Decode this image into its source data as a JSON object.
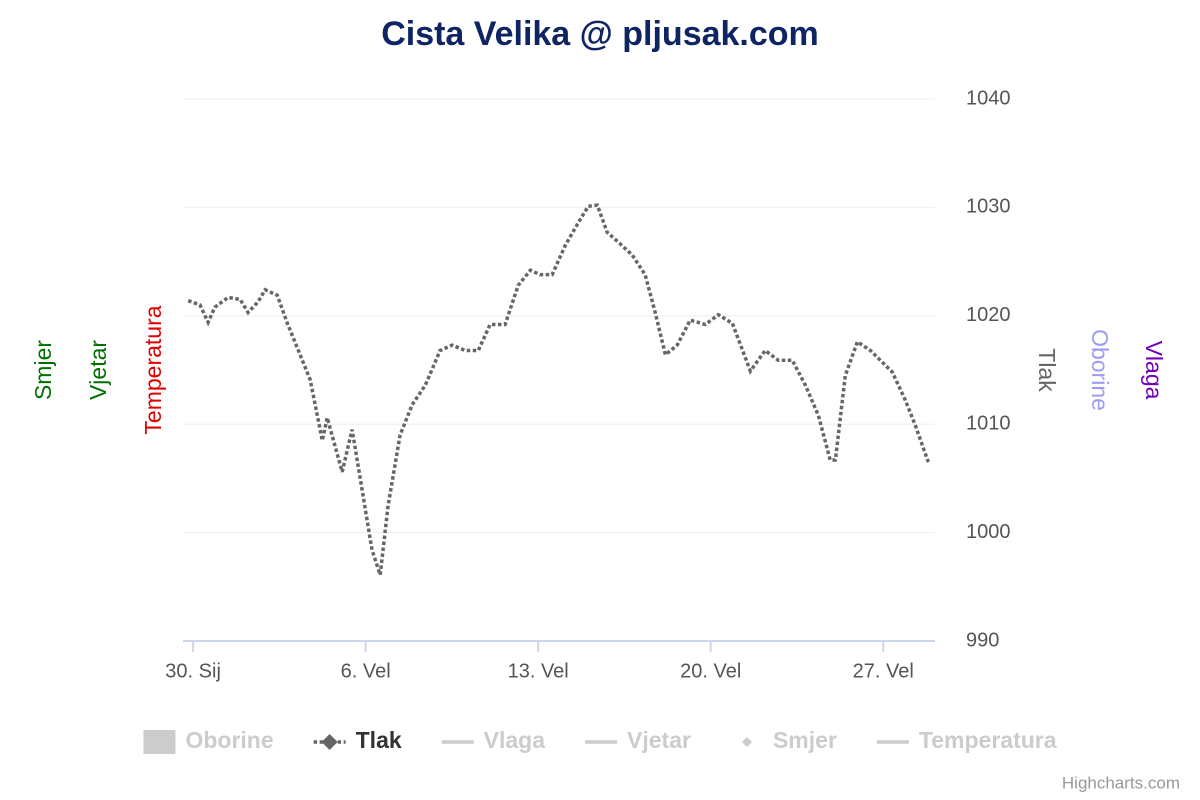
{
  "chart_data": {
    "type": "line",
    "title": "Cista Velika @ pljusak.com",
    "credits": "Highcharts.com",
    "xlim": [
      -0.41,
      30.1
    ],
    "xticks": [
      {
        "value": 0,
        "label": "30. Sij"
      },
      {
        "value": 7,
        "label": "6. Vel"
      },
      {
        "value": 14,
        "label": "13. Vel"
      },
      {
        "value": 21,
        "label": "20. Vel"
      },
      {
        "value": 28,
        "label": "27. Vel"
      }
    ],
    "ylim": [
      990,
      1040
    ],
    "yticks": [
      990,
      1000,
      1010,
      1020,
      1030,
      1040
    ],
    "grid": true,
    "axis_titles": [
      {
        "text": "Smjer",
        "color": "#007000",
        "side": "left"
      },
      {
        "text": "Vjetar",
        "color": "#007000",
        "side": "left"
      },
      {
        "text": "Temperatura",
        "color": "#e00000",
        "side": "left"
      },
      {
        "text": "Tlak",
        "color": "#666666",
        "side": "right"
      },
      {
        "text": "Oborine",
        "color": "#9c9cf0",
        "side": "right"
      },
      {
        "text": "Vlaga",
        "color": "#7000c0",
        "side": "right"
      }
    ],
    "series": [
      {
        "name": "Oborine",
        "symbol": "column",
        "visible": false
      },
      {
        "name": "Tlak",
        "symbol": "line-diamond",
        "visible": true,
        "color": "#666666",
        "dash": "dot",
        "x": [
          -0.2,
          0.28,
          0.61,
          0.89,
          1.42,
          1.91,
          2.23,
          2.64,
          2.92,
          3.41,
          3.81,
          4.34,
          4.75,
          5.24,
          5.44,
          6.05,
          6.45,
          6.86,
          7.26,
          7.59,
          7.91,
          8.4,
          8.89,
          9.42,
          10.02,
          10.51,
          11.04,
          11.57,
          12.05,
          12.66,
          13.19,
          13.68,
          14.08,
          14.57,
          15.1,
          15.58,
          16.03,
          16.4,
          16.8,
          17.25,
          17.82,
          18.34,
          18.75,
          19.16,
          19.64,
          20.17,
          20.78,
          21.31,
          21.88,
          22.61,
          23.21,
          23.74,
          24.31,
          24.84,
          25.37,
          25.85,
          26.06,
          26.46,
          26.95,
          27.48,
          27.88,
          28.37,
          28.9,
          29.3,
          29.83
        ],
        "values": [
          1021.4,
          1021.0,
          1019.4,
          1020.8,
          1021.7,
          1021.5,
          1020.3,
          1021.3,
          1022.4,
          1021.9,
          1019.4,
          1016.4,
          1014.1,
          1008.5,
          1010.6,
          1005.6,
          1009.5,
          1003.9,
          998.4,
          996.1,
          1002.5,
          1009.0,
          1011.8,
          1013.6,
          1016.8,
          1017.3,
          1016.8,
          1016.8,
          1019.2,
          1019.2,
          1022.8,
          1024.2,
          1023.8,
          1023.8,
          1026.5,
          1028.4,
          1030.1,
          1030.2,
          1027.7,
          1026.8,
          1025.6,
          1023.8,
          1020.3,
          1016.4,
          1017.3,
          1019.6,
          1019.2,
          1020.1,
          1019.3,
          1014.9,
          1016.8,
          1015.9,
          1015.9,
          1013.6,
          1010.8,
          1006.7,
          1006.7,
          1014.5,
          1017.6,
          1016.8,
          1015.9,
          1014.8,
          1012.2,
          1009.9,
          1006.5
        ]
      },
      {
        "name": "Vlaga",
        "symbol": "line",
        "visible": false
      },
      {
        "name": "Vjetar",
        "symbol": "line",
        "visible": false
      },
      {
        "name": "Smjer",
        "symbol": "diamond",
        "visible": false
      },
      {
        "name": "Temperatura",
        "symbol": "line",
        "visible": false
      }
    ]
  }
}
